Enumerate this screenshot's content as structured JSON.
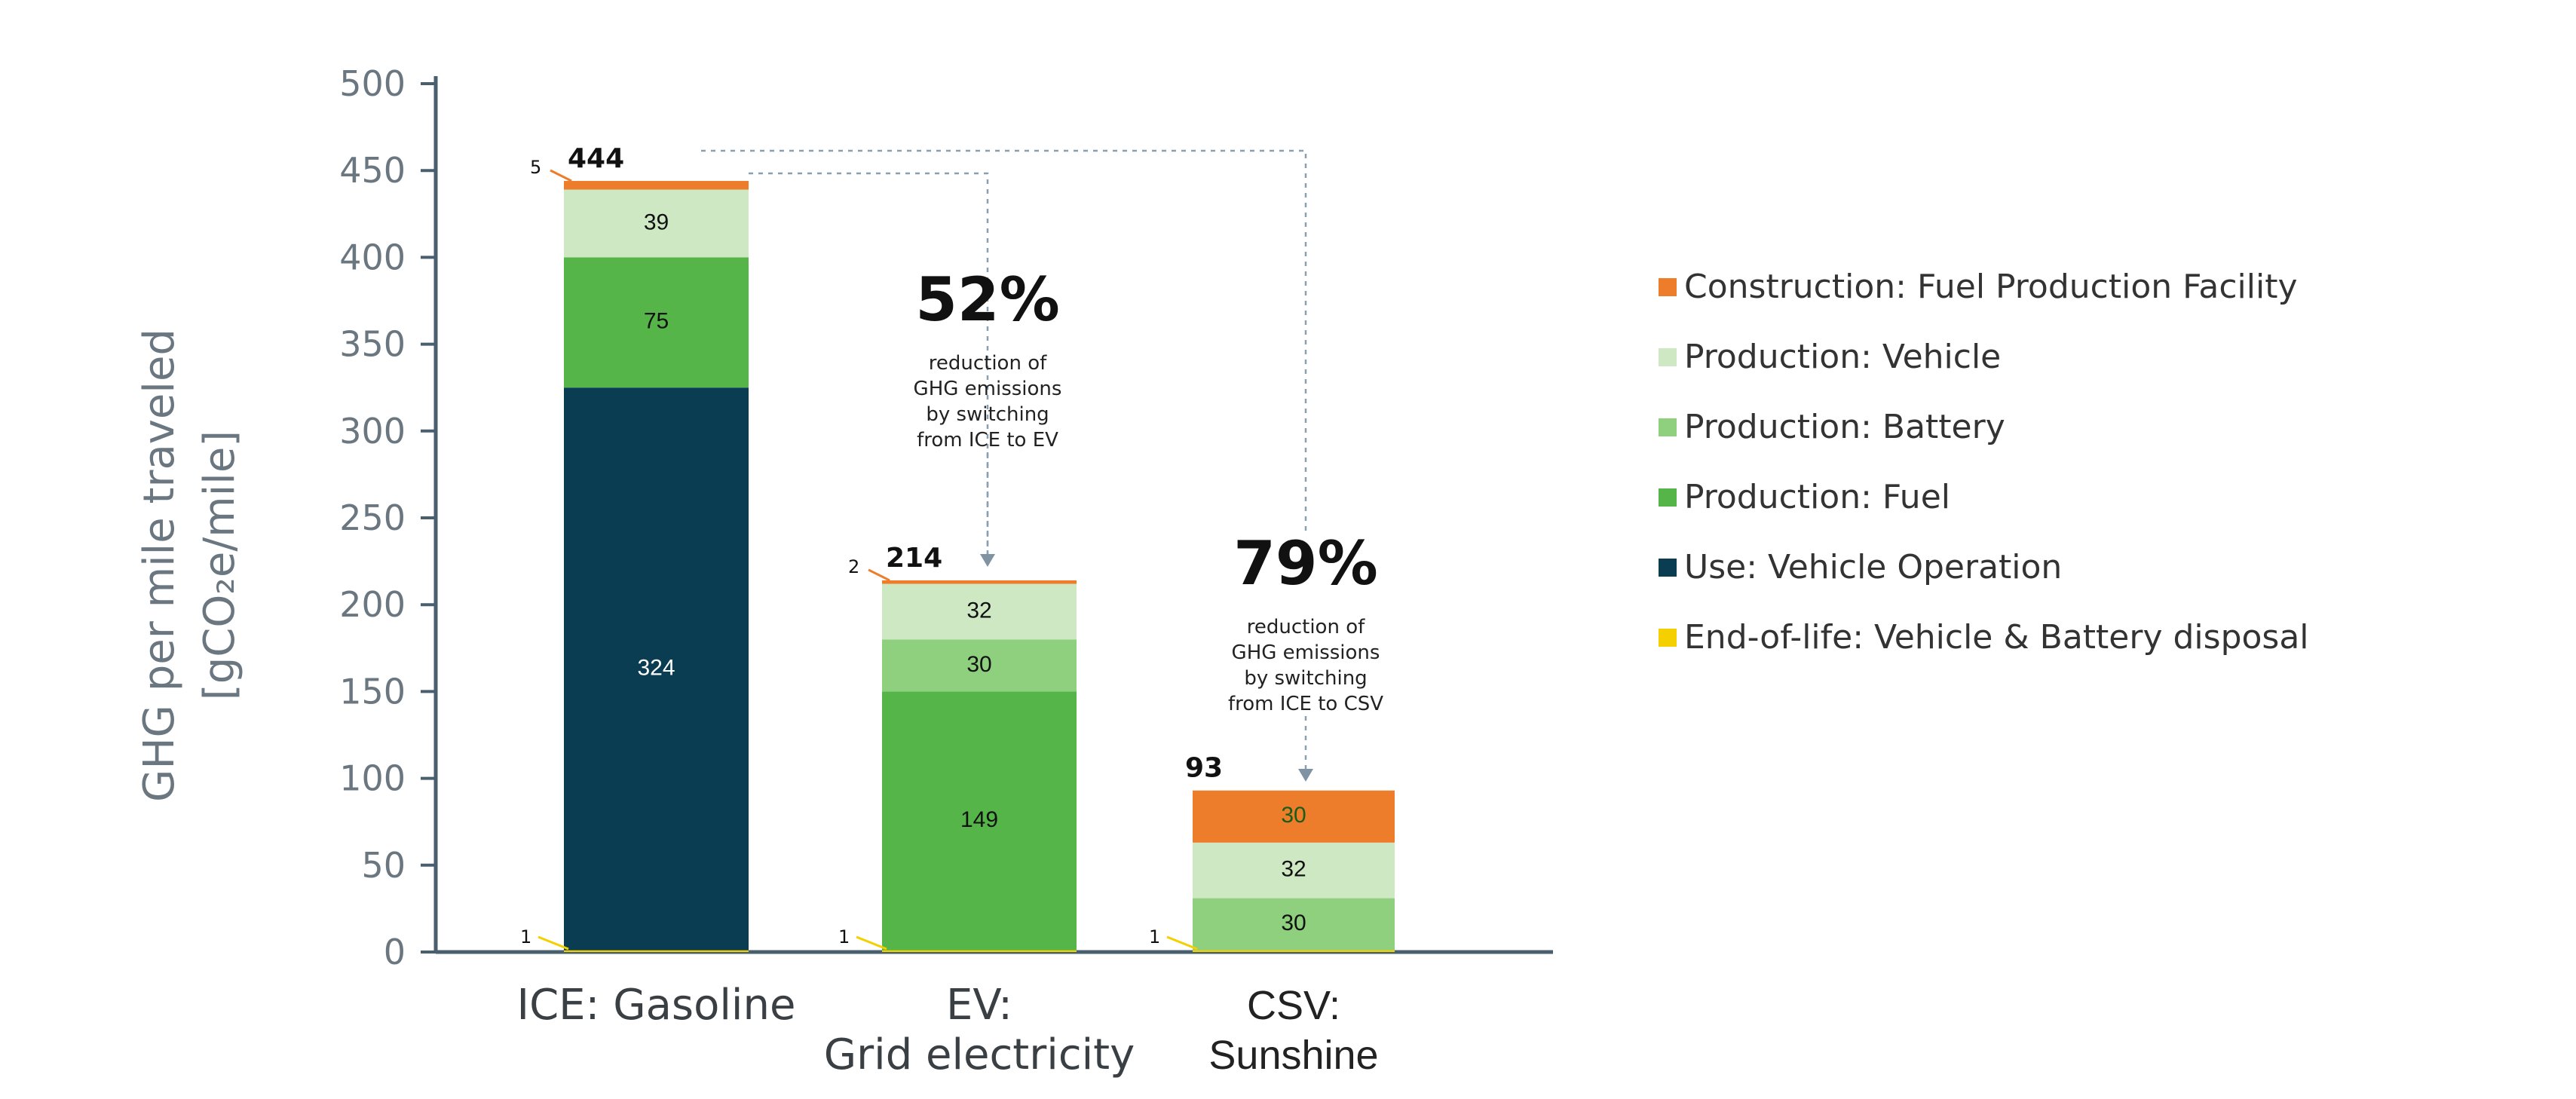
{
  "chart_data": {
    "type": "bar",
    "stacked": true,
    "ylim": [
      0,
      500
    ],
    "yticks": [
      0,
      50,
      100,
      150,
      200,
      250,
      300,
      350,
      400,
      450,
      500
    ],
    "ylabel_line1": "GHG per mile traveled",
    "ylabel_line2": "[gCO₂e/mile]",
    "categories": [
      {
        "line1": "ICE: Gasoline",
        "line2": ""
      },
      {
        "line1": "EV:",
        "line2": "Grid electricity"
      },
      {
        "line1": "CSV:",
        "line2": "Sunshine"
      }
    ],
    "series": [
      {
        "name": "End-of-life: Vehicle & Battery disposal",
        "color": "#f5d000",
        "values": [
          1,
          1,
          1
        ]
      },
      {
        "name": "Use: Vehicle Operation",
        "color": "#0b3d52",
        "values": [
          324,
          0,
          0
        ]
      },
      {
        "name": "Production: Fuel",
        "color": "#55b548",
        "values": [
          75,
          149,
          0
        ]
      },
      {
        "name": "Production: Battery",
        "color": "#8fd07f",
        "values": [
          0,
          30,
          30
        ]
      },
      {
        "name": "Production: Vehicle",
        "color": "#cfe8c4",
        "values": [
          39,
          32,
          32
        ]
      },
      {
        "name": "Construction: Fuel Production Facility",
        "color": "#ee7d2b",
        "values": [
          5,
          2,
          30
        ]
      }
    ],
    "segment_labels": [
      [
        {
          "series": 1,
          "text": "324",
          "color": "#ffffff"
        },
        {
          "series": 2,
          "text": "75",
          "color": "#111111"
        },
        {
          "series": 4,
          "text": "39",
          "color": "#111111"
        }
      ],
      [
        {
          "series": 2,
          "text": "149",
          "color": "#111111"
        },
        {
          "series": 3,
          "text": "30",
          "color": "#111111"
        },
        {
          "series": 4,
          "text": "32",
          "color": "#111111"
        }
      ],
      [
        {
          "series": 3,
          "text": "30",
          "color": "#111111"
        },
        {
          "series": 4,
          "text": "32",
          "color": "#111111"
        },
        {
          "series": 5,
          "text": "30",
          "color": "#1a5c1a"
        }
      ]
    ],
    "totals": [
      "444",
      "214",
      "93"
    ],
    "top_small_labels": [
      "5",
      "2",
      ""
    ],
    "bottom_small_labels": [
      "1",
      "1",
      "1"
    ],
    "annotations": [
      {
        "percent": "52%",
        "lines": [
          "reduction of",
          "GHG emissions",
          "by switching",
          "from ICE to EV"
        ]
      },
      {
        "percent": "79%",
        "lines": [
          "reduction of",
          "GHG emissions",
          "by switching",
          "from ICE to CSV"
        ]
      }
    ],
    "legend_order": [
      5,
      4,
      3,
      2,
      1,
      0
    ],
    "legend_position": "right",
    "grid": false
  }
}
